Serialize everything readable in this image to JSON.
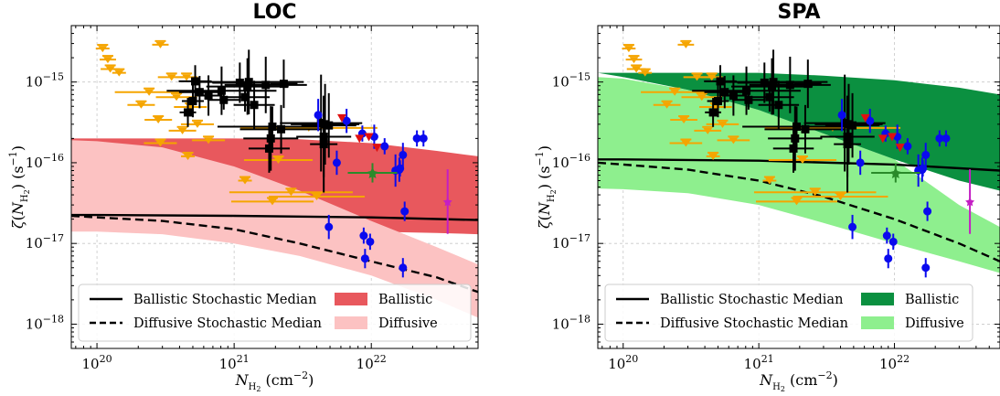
{
  "chart_data": [
    {
      "type": "scatter",
      "title": "LOC",
      "xlabel": "N_H2 (cm^-2)",
      "ylabel": "ζ(N_H2) (s^-1)",
      "x_scale": "log",
      "y_scale": "log",
      "xlim": [
        6.5e+19,
        6e+22
      ],
      "ylim": [
        5e-19,
        5e-15
      ],
      "x_ticks": [
        "10^20",
        "10^21",
        "10^22"
      ],
      "y_ticks": [
        "10^-18",
        "10^-17",
        "10^-16",
        "10^-15"
      ],
      "grid": true,
      "legend_position": "bottom",
      "legend": [
        {
          "label": "Ballistic Stochastic Median",
          "style": "solid-line"
        },
        {
          "label": "Diffusive Stochastic Median",
          "style": "dashed-line"
        },
        {
          "label": "Ballistic",
          "style": "band",
          "color": "#e8585d"
        },
        {
          "label": "Diffusive",
          "style": "band",
          "color": "#fcc2c2"
        }
      ],
      "bands": {
        "ballistic": {
          "color": "#e8585d",
          "x": [
            6.5e+19,
            1e+20,
            3e+20,
            1e+21,
            3e+21,
            1e+22,
            3e+22,
            6e+22
          ],
          "upper": [
            2e-16,
            2e-16,
            2e-16,
            2e-16,
            1.95e-16,
            1.75e-16,
            1.4e-16,
            1.2e-16
          ],
          "lower": [
            1.5e-17,
            1.5e-17,
            1.5e-17,
            1.5e-17,
            1.45e-17,
            1.4e-17,
            1.35e-17,
            1.3e-17
          ]
        },
        "diffusive": {
          "color": "#fcc2c2",
          "x": [
            6.5e+19,
            1e+20,
            3e+20,
            1e+21,
            3e+21,
            1e+22,
            3e+22,
            6e+22
          ],
          "upper": [
            1.9e-16,
            1.85e-16,
            1.55e-16,
            9e-17,
            4.5e-17,
            1.9e-17,
            9e-18,
            5.5e-18
          ],
          "lower": [
            1.4e-17,
            1.4e-17,
            1.3e-17,
            1e-17,
            7e-18,
            4e-18,
            2e-18,
            1.2e-18
          ]
        }
      },
      "median_lines": {
        "ballistic": {
          "x": [
            6.5e+19,
            1e+20,
            1e+21,
            1e+22,
            6e+22
          ],
          "y": [
            2.25e-17,
            2.25e-17,
            2.2e-17,
            2.1e-17,
            1.95e-17
          ]
        },
        "diffusive": {
          "x": [
            6.5e+19,
            1e+20,
            3e+20,
            1e+21,
            3e+21,
            1e+22,
            3e+22,
            6e+22
          ],
          "y": [
            2.2e-17,
            2.1e-17,
            1.9e-17,
            1.5e-17,
            1e-17,
            6e-18,
            3.8e-18,
            2.5e-18
          ]
        }
      }
    },
    {
      "type": "scatter",
      "title": "SPA",
      "xlabel": "N_H2 (cm^-2)",
      "ylabel": "ζ(N_H2) (s^-1)",
      "x_scale": "log",
      "y_scale": "log",
      "xlim": [
        6.5e+19,
        6e+22
      ],
      "ylim": [
        5e-19,
        5e-15
      ],
      "x_ticks": [
        "10^20",
        "10^21",
        "10^22"
      ],
      "y_ticks": [
        "10^-18",
        "10^-17",
        "10^-16",
        "10^-15"
      ],
      "grid": true,
      "legend_position": "bottom",
      "legend": [
        {
          "label": "Ballistic Stochastic Median",
          "style": "solid-line"
        },
        {
          "label": "Diffusive Stochastic Median",
          "style": "dashed-line"
        },
        {
          "label": "Ballistic",
          "style": "band",
          "color": "#0b9040"
        },
        {
          "label": "Diffusive",
          "style": "band",
          "color": "#8eef8e"
        }
      ],
      "bands": {
        "diffusive": {
          "color": "#8eef8e",
          "x": [
            6.5e+19,
            1e+20,
            3e+20,
            1e+21,
            3e+21,
            1e+22,
            3e+22,
            6e+22
          ],
          "upper": [
            1.15e-15,
            1.1e-15,
            8e-16,
            4.5e-16,
            2.3e-16,
            1.1e-16,
            3e-17,
            1.6e-17
          ],
          "lower": [
            4.8e-17,
            4.7e-17,
            4.2e-17,
            3e-17,
            1.8e-17,
            1e-17,
            6e-18,
            4.3e-18
          ]
        },
        "ballistic": {
          "color": "#0b9040",
          "x": [
            6.5e+19,
            1e+20,
            3e+20,
            1e+21,
            3e+21,
            1e+22,
            3e+22,
            6e+22
          ],
          "upper": [
            1.3e-15,
            1.3e-15,
            1.3e-15,
            1.3e-15,
            1.2e-15,
            1.05e-15,
            8.5e-16,
            7e-16
          ],
          "lower": [
            1.3e-15,
            1.15e-15,
            8e-16,
            4.5e-16,
            2.3e-16,
            1.1e-16,
            6e-17,
            4.5e-17
          ]
        }
      },
      "median_lines": {
        "ballistic": {
          "x": [
            6.5e+19,
            1e+20,
            1e+21,
            1e+22,
            6e+22
          ],
          "y": [
            1.1e-16,
            1.1e-16,
            1.06e-16,
            9.5e-17,
            8e-17
          ]
        },
        "diffusive": {
          "x": [
            6.5e+19,
            1e+20,
            3e+20,
            1e+21,
            3e+21,
            1e+22,
            3e+22,
            6e+22
          ],
          "y": [
            1e-16,
            9.5e-17,
            8.2e-17,
            6e-17,
            3.8e-17,
            2e-17,
            1e-17,
            6e-18
          ]
        }
      }
    }
  ],
  "observations": {
    "upper_limits": {
      "color": "#f5a500",
      "points": [
        {
          "x": 1.1e+20,
          "y": 2.6e-15,
          "xerr": 0.05
        },
        {
          "x": 1.2e+20,
          "y": 1.9e-15,
          "xerr": 0.06
        },
        {
          "x": 1.25e+20,
          "y": 1.45e-15,
          "xerr": 0.07
        },
        {
          "x": 1.45e+20,
          "y": 1.3e-15,
          "xerr": 0.05
        },
        {
          "x": 2.9e+20,
          "y": 2.9e-15,
          "xerr": 0.06
        },
        {
          "x": 3.5e+20,
          "y": 1.15e-15,
          "xerr": 0.1
        },
        {
          "x": 4.5e+20,
          "y": 1.15e-15,
          "xerr": 0.08
        },
        {
          "x": 2.4e+20,
          "y": 7.5e-16,
          "xerr": 0.25
        },
        {
          "x": 3.8e+20,
          "y": 6.5e-16,
          "xerr": 0.15
        },
        {
          "x": 2.1e+20,
          "y": 5.2e-16,
          "xerr": 0.1
        },
        {
          "x": 4.8e+20,
          "y": 4.9e-16,
          "xerr": 0.12
        },
        {
          "x": 2.8e+20,
          "y": 3.4e-16,
          "xerr": 0.1
        },
        {
          "x": 5.4e+20,
          "y": 3e-16,
          "xerr": 0.12
        },
        {
          "x": 4.2e+20,
          "y": 2.5e-16,
          "xerr": 0.1
        },
        {
          "x": 6.5e+20,
          "y": 1.9e-16,
          "xerr": 0.12
        },
        {
          "x": 2.9e+20,
          "y": 1.75e-16,
          "xerr": 0.12
        },
        {
          "x": 4.6e+20,
          "y": 1.2e-16,
          "xerr": 0.05
        },
        {
          "x": 2.1e+21,
          "y": 1.08e-16,
          "xerr": 0.25
        },
        {
          "x": 3.5e+21,
          "y": 2.7e-16,
          "xerr": 0.5
        },
        {
          "x": 1.2e+21,
          "y": 6e-17,
          "xerr": 0.05
        },
        {
          "x": 2.6e+21,
          "y": 4.3e-17,
          "xerr": 0.45
        },
        {
          "x": 4e+21,
          "y": 3.8e-17,
          "xerr": 0.35
        },
        {
          "x": 1.9e+21,
          "y": 3.3e-17,
          "xerr": 0.3
        }
      ]
    },
    "squares": {
      "color": "#000000",
      "points": [
        {
          "x": 5e+20,
          "y": 5.8e-16,
          "xerr": 0.08,
          "yerr": 0.2
        },
        {
          "x": 4.6e+20,
          "y": 4.2e-16,
          "xerr": 0.06,
          "yerr": 0.18
        },
        {
          "x": 5.6e+20,
          "y": 7.5e-16,
          "xerr": 0.15,
          "yerr": 0.2
        },
        {
          "x": 6.5e+20,
          "y": 6.8e-16,
          "xerr": 0.1,
          "yerr": 0.25
        },
        {
          "x": 5.2e+20,
          "y": 1.02e-15,
          "xerr": 0.12,
          "yerr": 0.2
        },
        {
          "x": 8.1e+20,
          "y": 7.8e-16,
          "xerr": 0.4,
          "yerr": 0.3
        },
        {
          "x": 8.4e+20,
          "y": 6e-16,
          "xerr": 0.12,
          "yerr": 0.12
        },
        {
          "x": 1.1e+21,
          "y": 9.8e-16,
          "xerr": 0.2,
          "yerr": 0.25
        },
        {
          "x": 1.25e+21,
          "y": 8.8e-16,
          "xerr": 0.3,
          "yerr": 0.35
        },
        {
          "x": 1.28e+21,
          "y": 1e-15,
          "xerr": 0.4,
          "yerr": 0.4
        },
        {
          "x": 1.2e+21,
          "y": 6.5e-16,
          "xerr": 0.18,
          "yerr": 0.18
        },
        {
          "x": 1.4e+21,
          "y": 5.2e-16,
          "xerr": 0.15,
          "yerr": 0.3
        },
        {
          "x": 1.7e+21,
          "y": 9.2e-16,
          "xerr": 0.3,
          "yerr": 0.35
        },
        {
          "x": 1.9e+21,
          "y": 2.8e-16,
          "xerr": 0.4,
          "yerr": 0.25
        },
        {
          "x": 1.85e+21,
          "y": 2e-16,
          "xerr": 0.2,
          "yerr": 0.4
        },
        {
          "x": 1.8e+21,
          "y": 1.5e-16,
          "xerr": 0.15,
          "yerr": 0.3
        },
        {
          "x": 2.3e+21,
          "y": 9.5e-16,
          "xerr": 0.1,
          "yerr": 0.3
        },
        {
          "x": 2.2e+21,
          "y": 2.6e-16,
          "xerr": 0.3,
          "yerr": 0.3
        },
        {
          "x": 4.3e+21,
          "y": 3.1e-16,
          "xerr": 0.3,
          "yerr": 0.6
        },
        {
          "x": 4.6e+21,
          "y": 3e-16,
          "xerr": 0.25,
          "yerr": 0.5
        },
        {
          "x": 4.9e+21,
          "y": 2.9e-16,
          "xerr": 0.2,
          "yerr": 0.4
        },
        {
          "x": 4.5e+21,
          "y": 2.1e-16,
          "xerr": 0.2,
          "yerr": 0.5
        },
        {
          "x": 4.5e+21,
          "y": 1.7e-16,
          "xerr": 0.1,
          "yerr": 0.6
        }
      ]
    },
    "circles": {
      "color": "#0a0aee",
      "points": [
        {
          "x": 4.1e+21,
          "y": 3.9e-16,
          "yerr": 0.2
        },
        {
          "x": 5.6e+21,
          "y": 1e-16,
          "yerr": 0.15
        },
        {
          "x": 6.6e+21,
          "y": 3.3e-16,
          "yerr": 0.15
        },
        {
          "x": 8.6e+21,
          "y": 2.3e-16,
          "yerr": 0.1
        },
        {
          "x": 4.9e+21,
          "y": 1.6e-17,
          "yerr": 0.15
        },
        {
          "x": 1.05e+22,
          "y": 2.1e-16,
          "yerr": 0.15
        },
        {
          "x": 1.25e+22,
          "y": 1.6e-16,
          "yerr": 0.1
        },
        {
          "x": 1.5e+22,
          "y": 8e-17,
          "yerr": 0.2
        },
        {
          "x": 1.6e+22,
          "y": 8.2e-17,
          "yerr": 0.15
        },
        {
          "x": 1.7e+22,
          "y": 1.25e-16,
          "yerr": 0.15
        },
        {
          "x": 1.62e+22,
          "y": 8.5e-17,
          "yerr": 0.1
        },
        {
          "x": 8.8e+21,
          "y": 1.25e-17,
          "yerr": 0.1
        },
        {
          "x": 9.8e+21,
          "y": 1.05e-17,
          "yerr": 0.1
        },
        {
          "x": 9e+21,
          "y": 6.5e-18,
          "yerr": 0.12
        },
        {
          "x": 1.75e+22,
          "y": 2.5e-17,
          "yerr": 0.12
        },
        {
          "x": 1.7e+22,
          "y": 5e-18,
          "yerr": 0.12
        },
        {
          "x": 2.15e+22,
          "y": 2e-16,
          "yerr": 0.1
        },
        {
          "x": 2.4e+22,
          "y": 2e-16,
          "yerr": 0.1
        }
      ]
    },
    "triangles": {
      "color": "#e01010",
      "points": [
        {
          "x": 6.1e+21,
          "y": 3.6e-16
        },
        {
          "x": 8.2e+21,
          "y": 2e-16
        },
        {
          "x": 9.6e+21,
          "y": 2.1e-16
        },
        {
          "x": 1.1e+22,
          "y": 1.55e-16
        }
      ]
    },
    "green_star": {
      "color": "#2a8a2a",
      "points": [
        {
          "x": 1.02e+22,
          "y": 7.5e-17,
          "xerr": 0.18,
          "yerr": 0.12
        }
      ]
    },
    "magenta_star": {
      "color": "#c41ec4",
      "points": [
        {
          "x": 3.6e+22,
          "y": 3.3e-17,
          "yerr": 0.4
        }
      ]
    }
  }
}
